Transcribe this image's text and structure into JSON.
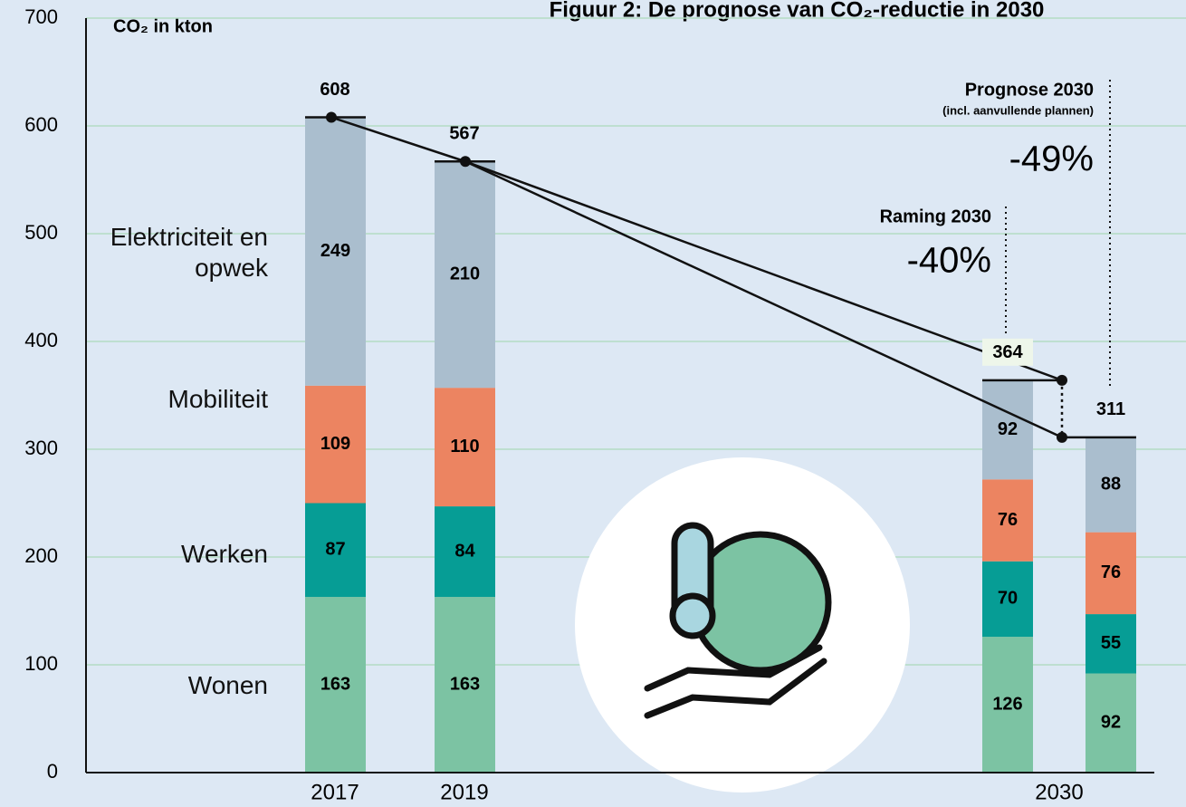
{
  "chart_data": {
    "type": "bar",
    "stacked": true,
    "title": "Figuur 2: De prognose van CO₂-reductie in 2030",
    "y_label": "CO₂ in kton",
    "categories": [
      "2017",
      "2019",
      "2030",
      null
    ],
    "series": [
      {
        "name": "Wonen",
        "color": "#7cc3a3",
        "values": [
          163,
          163,
          126,
          92
        ]
      },
      {
        "name": "Werken",
        "color": "#069d95",
        "values": [
          87,
          84,
          70,
          55
        ]
      },
      {
        "name": "Mobiliteit",
        "color": "#ec8461",
        "values": [
          109,
          110,
          76,
          76
        ]
      },
      {
        "name": "Elektriciteit en opwek",
        "color": "#aabece",
        "values": [
          249,
          210,
          92,
          88
        ]
      }
    ],
    "totals": [
      608,
      567,
      364,
      311
    ],
    "annotations": [
      "Raming 2030",
      "-40%",
      "Prognose 2030",
      "(incl. aanvullende plannen)",
      "-49%"
    ],
    "ylim": [
      0,
      700
    ],
    "yticks": [
      0,
      100,
      200,
      300,
      400,
      500,
      600,
      700
    ],
    "grid": true
  }
}
